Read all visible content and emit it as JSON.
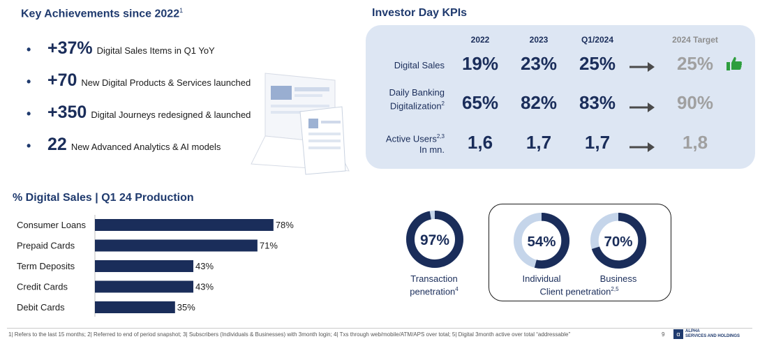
{
  "achievements": {
    "title": "Key Achievements since 2022",
    "title_sup": "1",
    "items": [
      {
        "big": "+37%",
        "text": "Digital Sales Items in Q1 YoY"
      },
      {
        "big": "+70",
        "text": "New Digital Products & Services launched"
      },
      {
        "big": "+350",
        "text": "Digital Journeys redesigned & launched"
      },
      {
        "big": "22",
        "text": "New Advanced Analytics & AI models"
      }
    ]
  },
  "kpis": {
    "title": "Investor Day KPIs",
    "columns": [
      "2022",
      "2023",
      "Q1/2024",
      "2024 Target"
    ],
    "rows": [
      {
        "label": "Digital Sales",
        "values": [
          "19%",
          "23%",
          "25%"
        ],
        "target": "25%"
      },
      {
        "label": "Daily Banking",
        "label2": "Digitalization",
        "label2_sup": "2",
        "values": [
          "65%",
          "82%",
          "83%"
        ],
        "target": "90%"
      },
      {
        "label": "Active Users",
        "label_sup": "2,3",
        "label2": "In mn.",
        "values": [
          "1,6",
          "1,7",
          "1,7"
        ],
        "target": "1,8"
      }
    ],
    "colors": {
      "primary": "#1a2d5a",
      "target": "#a0a0a0",
      "panel": "#dde6f3",
      "thumb": "#2e9e3e"
    },
    "target_met_icon": "thumbs-up-icon"
  },
  "chart_section": {
    "title": "% Digital Sales | Q1 24 Production"
  },
  "chart_data": {
    "type": "bar",
    "orientation": "horizontal",
    "categories": [
      "Consumer Loans",
      "Prepaid Cards",
      "Term Deposits",
      "Credit Cards",
      "Debit Cards"
    ],
    "values": [
      78,
      71,
      43,
      43,
      35
    ],
    "value_labels": [
      "78%",
      "71%",
      "43%",
      "43%",
      "35%"
    ],
    "xlim": [
      0,
      100
    ],
    "bar_color": "#1a2d5a"
  },
  "penetration": {
    "transaction": {
      "value": 97,
      "label": "97%",
      "caption1": "Transaction",
      "caption2": "penetration",
      "caption2_sup": "4"
    },
    "individual": {
      "value": 54,
      "label": "54%",
      "caption": "Individual"
    },
    "business": {
      "value": 70,
      "label": "70%",
      "caption": "Business"
    },
    "client_caption": "Client penetration",
    "client_caption_sup": "2,5",
    "colors": {
      "fill": "#1a2d5a",
      "rest": "#c5d5ea"
    }
  },
  "footer": {
    "footnote": "1| Refers to the last 15 months; 2| Referred to end of period snapshot; 3| Subscribers (Individuals & Businesses) with 3month login; 4| Txs through web/mobile/ATM/APS over total; 5| Digital 3month active over total “addressable”",
    "page": "9",
    "logo_line1": "ALPHA",
    "logo_line2": "SERVICES AND HOLDINGS"
  }
}
